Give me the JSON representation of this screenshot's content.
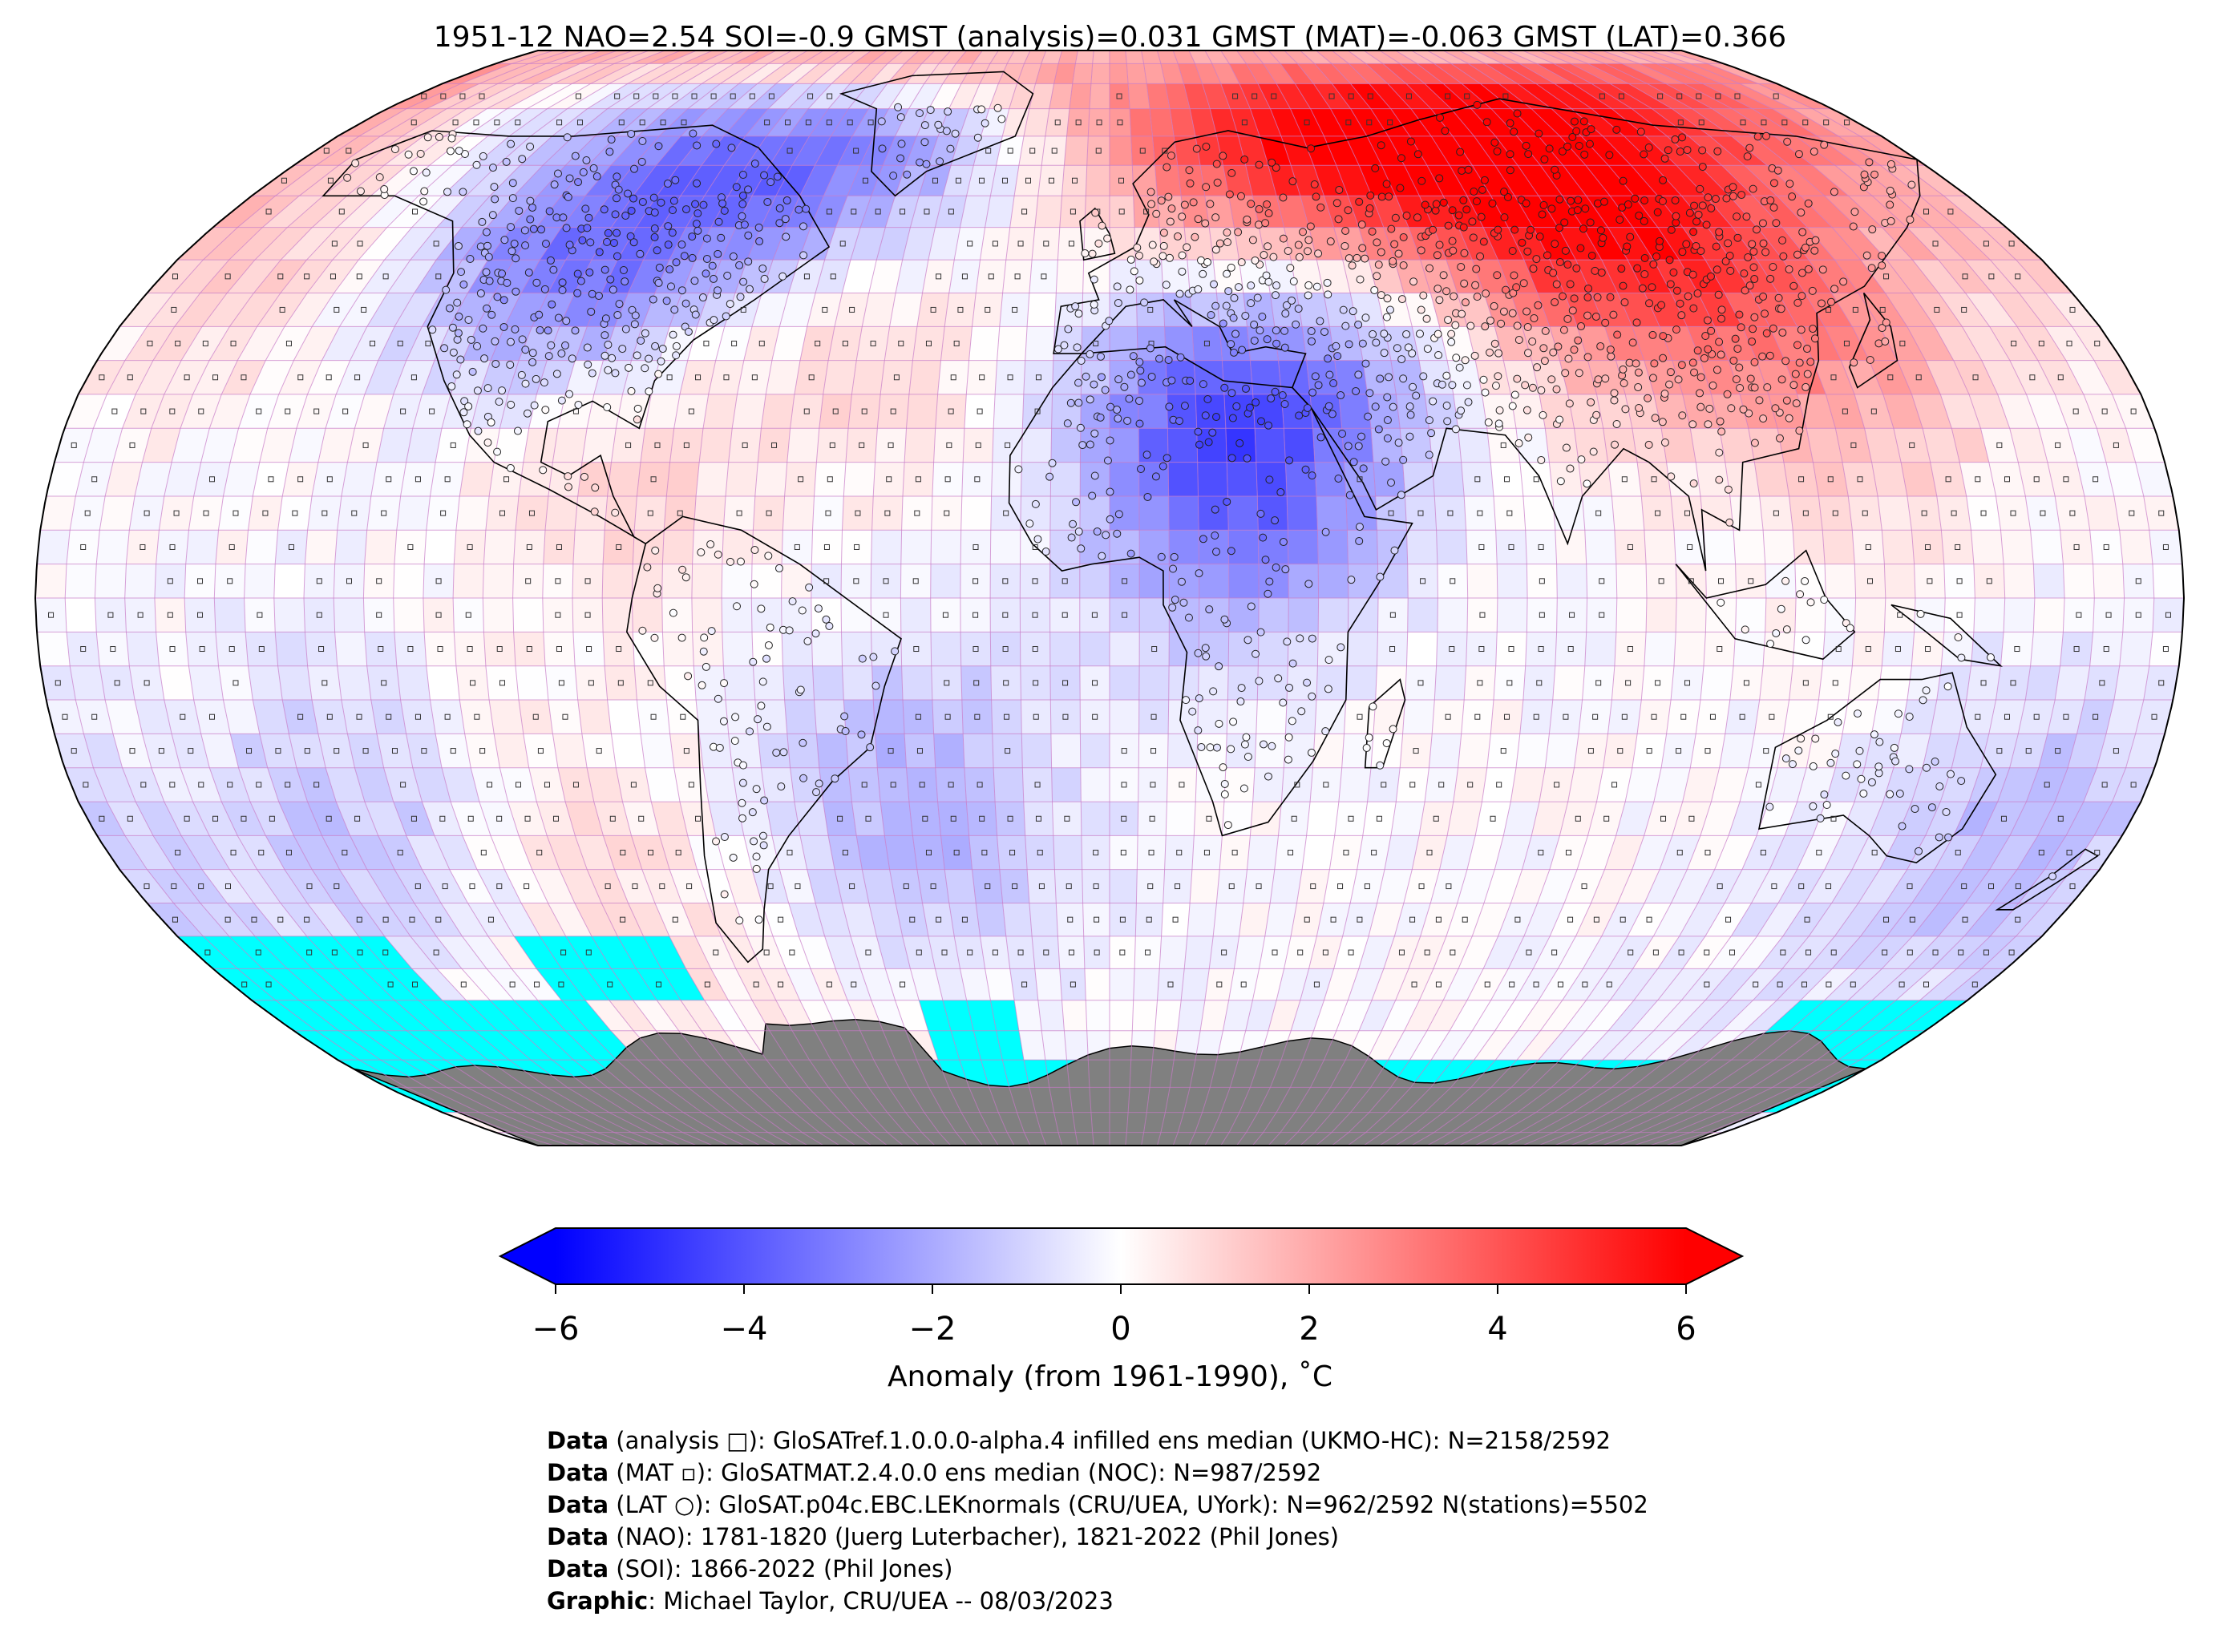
{
  "title": "1951-12 NAO=2.54 SOI=-0.9 GMST (analysis)=0.031 GMST (MAT)=-0.063 GMST (LAT)=0.366",
  "colorbar": {
    "label": "Anomaly (from 1961-1990), ˚C",
    "ticks": [
      "−6",
      "−4",
      "−2",
      "0",
      "2",
      "4",
      "6"
    ],
    "tick_values": [
      -6,
      -4,
      -2,
      0,
      2,
      4,
      6
    ],
    "range": [
      -6,
      6
    ],
    "colors": {
      "min": "#0000ff",
      "mid": "#ffffff",
      "max": "#ff0000"
    }
  },
  "map": {
    "projection": "Robinson",
    "sea_ice_color": "#00ffff",
    "antarctica_color": "#808080",
    "gridline_color": "#c77ac7",
    "hotspots": [
      {
        "name": "north-america",
        "lon": -98,
        "lat": 52,
        "anomaly": -4.5
      },
      {
        "name": "greenland-arctic",
        "lon": -40,
        "lat": 75,
        "anomaly": -2.5
      },
      {
        "name": "north-pacific",
        "lon": -155,
        "lat": 60,
        "anomaly": 1.5
      },
      {
        "name": "gulf-coast",
        "lon": -88,
        "lat": 30,
        "anomaly": 1.8
      },
      {
        "name": "siberia",
        "lon": 90,
        "lat": 62,
        "anomaly": 5.5
      },
      {
        "name": "scandinavia",
        "lon": 25,
        "lat": 66,
        "anomaly": 4.0
      },
      {
        "name": "east-asia",
        "lon": 125,
        "lat": 40,
        "anomaly": 2.5
      },
      {
        "name": "sahara",
        "lon": 20,
        "lat": 20,
        "anomaly": -3.5
      },
      {
        "name": "mediterranean",
        "lon": 30,
        "lat": 38,
        "anomaly": -2.0
      },
      {
        "name": "south-atlantic",
        "lon": -35,
        "lat": -30,
        "anomaly": -1.8
      },
      {
        "name": "south-pacific-west",
        "lon": -130,
        "lat": -35,
        "anomaly": -1.5
      },
      {
        "name": "tasman",
        "lon": 160,
        "lat": -35,
        "anomaly": -1.5
      },
      {
        "name": "east-pacific-south",
        "lon": -95,
        "lat": -45,
        "anomaly": 1.2
      },
      {
        "name": "north-atlantic",
        "lon": -35,
        "lat": 40,
        "anomaly": 1.0
      }
    ]
  },
  "credits": [
    {
      "key": "Data",
      "text": " (analysis □): GloSATref.1.0.0.0-alpha.4 infilled ens median (UKMO-HC): N=2158/2592"
    },
    {
      "key": "Data",
      "text": " (MAT ▫): GloSATMAT.2.4.0.0 ens median (NOC): N=987/2592"
    },
    {
      "key": "Data",
      "text": " (LAT ○): GloSAT.p04c.EBC.LEKnormals (CRU/UEA, UYork): N=962/2592 N(stations)=5502"
    },
    {
      "key": "Data",
      "text": " (NAO): 1781-1820 (Juerg Luterbacher), 1821-2022 (Phil Jones)"
    },
    {
      "key": "Data",
      "text": " (SOI): 1866-2022 (Phil Jones)"
    },
    {
      "key": "Graphic",
      "text": ": Michael Taylor, CRU/UEA -- 08/03/2023"
    }
  ]
}
